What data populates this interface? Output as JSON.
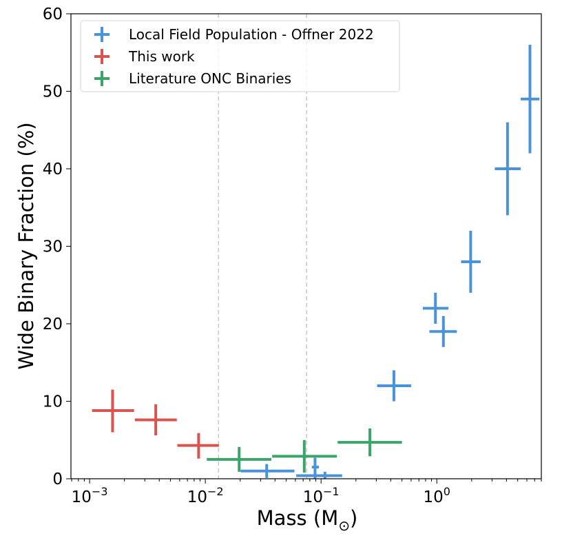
{
  "chart_data": {
    "type": "scatter",
    "title": "",
    "xlabel": "Mass (M",
    "xlabel_symbol": "⊙",
    "xlabel_close": ")",
    "ylabel": "Wide Binary Fraction (%)",
    "xscale": "log",
    "xlim": [
      0.00069,
      8.0
    ],
    "ylim": [
      0,
      60
    ],
    "grid": false,
    "legend_placement": "top-left",
    "x_ticks": [
      {
        "value": 0.001,
        "base": "10",
        "exp": "−3"
      },
      {
        "value": 0.01,
        "base": "10",
        "exp": "−2"
      },
      {
        "value": 0.1,
        "base": "10",
        "exp": "−1"
      },
      {
        "value": 1,
        "base": "10",
        "exp": "0"
      }
    ],
    "y_ticks": [
      "0",
      "10",
      "20",
      "30",
      "40",
      "50",
      "60"
    ],
    "vertical_reference_lines": [
      0.013,
      0.075
    ],
    "series": [
      {
        "name": "Local Field Population - Offner 2022",
        "color": "#4a93db",
        "points": [
          {
            "x": 0.0339,
            "xerr": [
              0.0202,
              0.0589
            ],
            "y": 1.0,
            "yerr": [
              0.1,
              1.9
            ]
          },
          {
            "x": 0.0887,
            "xerr": [
              0.0832,
              0.0958
            ],
            "y": 1.5,
            "yerr": [
              0.0,
              2.7
            ]
          },
          {
            "x": 0.108,
            "xerr": [
              0.061,
              0.152
            ],
            "y": 0.4,
            "yerr": [
              0.0,
              0.9
            ]
          },
          {
            "x": 0.426,
            "xerr": [
              0.305,
              0.6
            ],
            "y": 12.0,
            "yerr": [
              10.0,
              14.0
            ]
          },
          {
            "x": 0.973,
            "xerr": [
              0.757,
              1.26
            ],
            "y": 22.0,
            "yerr": [
              20.0,
              24.0
            ]
          },
          {
            "x": 1.14,
            "xerr": [
              0.863,
              1.49
            ],
            "y": 19.0,
            "yerr": [
              17.0,
              21.0
            ]
          },
          {
            "x": 1.96,
            "xerr": [
              1.62,
              2.39
            ],
            "y": 28.0,
            "yerr": [
              24.0,
              32.0
            ]
          },
          {
            "x": 4.08,
            "xerr": [
              3.17,
              5.3
            ],
            "y": 40.0,
            "yerr": [
              34.0,
              46.0
            ]
          },
          {
            "x": 6.38,
            "xerr": [
              5.3,
              7.7
            ],
            "y": 49.0,
            "yerr": [
              42.0,
              56.0
            ]
          }
        ]
      },
      {
        "name": "This work",
        "color": "#d9534f",
        "points": [
          {
            "x": 0.00158,
            "xerr": [
              0.00105,
              0.00242
            ],
            "y": 8.8,
            "yerr": [
              6.0,
              11.5
            ]
          },
          {
            "x": 0.00373,
            "xerr": [
              0.00246,
              0.00567
            ],
            "y": 7.6,
            "yerr": [
              5.6,
              9.6
            ]
          },
          {
            "x": 0.00875,
            "xerr": [
              0.00573,
              0.0131
            ],
            "y": 4.3,
            "yerr": [
              2.6,
              5.9
            ]
          }
        ]
      },
      {
        "name": "Literature ONC Binaries",
        "color": "#3aa56b",
        "points": [
          {
            "x": 0.0196,
            "xerr": [
              0.0103,
              0.0372
            ],
            "y": 2.5,
            "yerr": [
              0.9,
              4.1
            ]
          },
          {
            "x": 0.0716,
            "xerr": [
              0.0378,
              0.137
            ],
            "y": 2.9,
            "yerr": [
              0.8,
              5.0
            ]
          },
          {
            "x": 0.264,
            "xerr": [
              0.139,
              0.5
            ],
            "y": 4.7,
            "yerr": [
              2.9,
              6.5
            ]
          }
        ]
      }
    ]
  }
}
